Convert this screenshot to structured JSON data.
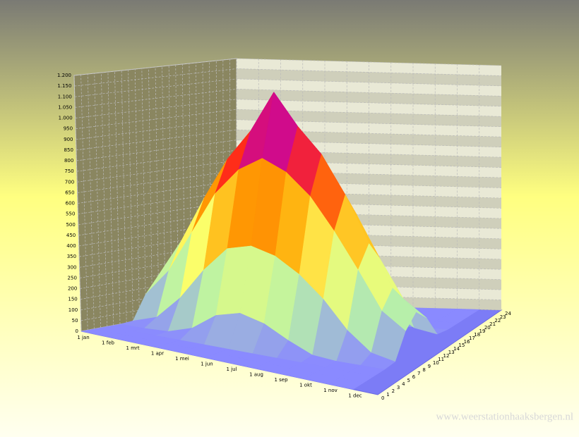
{
  "chart_data": {
    "type": "surface",
    "categories": [
      "1 jan",
      "1 feb",
      "1 mrt",
      "1 apr",
      "1 mei",
      "1 jun",
      "1 jul",
      "1 aug",
      "1 sep",
      "1 okt",
      "1 nov",
      "1 dec"
    ],
    "hours": [
      0,
      2,
      4,
      6,
      8,
      10,
      12,
      14,
      16,
      18,
      20,
      22,
      24
    ],
    "values": [
      [
        0,
        0,
        0,
        0,
        5,
        120,
        200,
        150,
        20,
        0,
        0,
        0,
        0
      ],
      [
        0,
        0,
        0,
        0,
        40,
        250,
        380,
        300,
        80,
        0,
        0,
        0,
        0
      ],
      [
        0,
        0,
        0,
        5,
        150,
        450,
        600,
        480,
        200,
        5,
        0,
        0,
        0
      ],
      [
        0,
        0,
        0,
        40,
        300,
        650,
        800,
        680,
        350,
        40,
        0,
        0,
        0
      ],
      [
        0,
        0,
        0,
        120,
        420,
        780,
        950,
        820,
        480,
        120,
        0,
        0,
        0
      ],
      [
        0,
        0,
        0,
        150,
        450,
        850,
        1150,
        900,
        520,
        170,
        5,
        0,
        0
      ],
      [
        0,
        0,
        0,
        120,
        420,
        800,
        1000,
        880,
        500,
        150,
        5,
        0,
        0
      ],
      [
        0,
        0,
        0,
        60,
        350,
        700,
        880,
        760,
        400,
        80,
        0,
        0,
        0
      ],
      [
        0,
        0,
        0,
        10,
        250,
        550,
        700,
        580,
        250,
        15,
        0,
        0,
        0
      ],
      [
        0,
        0,
        0,
        0,
        120,
        380,
        480,
        380,
        100,
        0,
        0,
        0,
        0
      ],
      [
        0,
        0,
        0,
        0,
        30,
        200,
        280,
        200,
        30,
        0,
        0,
        0,
        0
      ],
      [
        0,
        0,
        0,
        0,
        5,
        120,
        180,
        120,
        10,
        0,
        0,
        0,
        0
      ]
    ],
    "hlim": [
      0,
      24
    ],
    "hticks": [
      0,
      1,
      2,
      3,
      4,
      5,
      6,
      7,
      8,
      9,
      10,
      11,
      12,
      13,
      14,
      15,
      16,
      17,
      18,
      19,
      20,
      21,
      22,
      23,
      24
    ],
    "zlim": [
      0,
      1200
    ],
    "zticks": [
      0,
      50,
      100,
      150,
      200,
      250,
      300,
      350,
      400,
      450,
      500,
      550,
      600,
      650,
      700,
      750,
      800,
      850,
      900,
      950,
      {
        "value": 1000,
        "label": "1.000"
      },
      {
        "value": 1050,
        "label": "1.050"
      },
      {
        "value": 1100,
        "label": "1.100"
      },
      {
        "value": 1150,
        "label": "1.150"
      },
      {
        "value": 1200,
        "label": "1.200"
      }
    ],
    "colorscale": [
      "#8a8aff",
      "#b8f2a8",
      "#ffff66",
      "#ffa600",
      "#ff2a1a",
      "#c000b0",
      "#9070ff"
    ],
    "grid": true,
    "watermark": "www.weerstationhaaksbergen.nl"
  }
}
